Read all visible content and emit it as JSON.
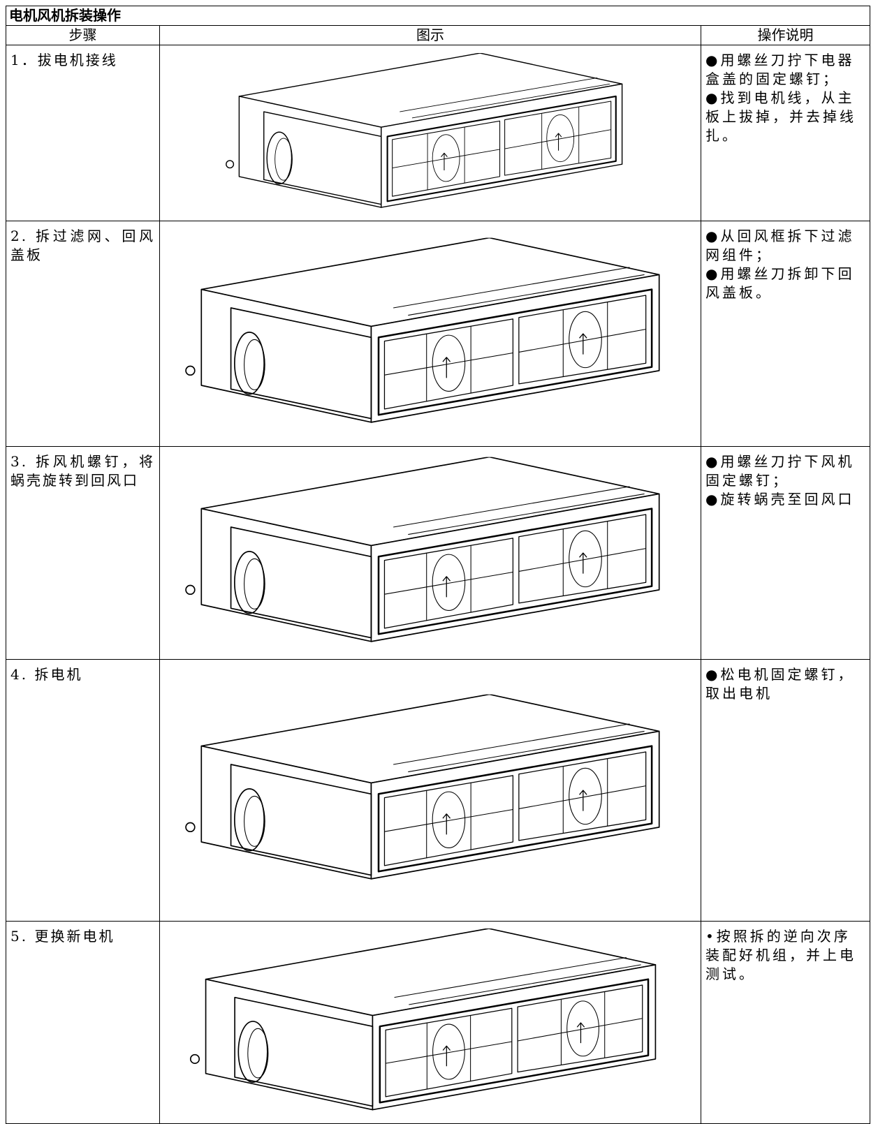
{
  "table": {
    "title": "电机风机拆装操作",
    "headers": [
      "步骤",
      "图示",
      "操作说明"
    ],
    "rows": [
      {
        "step": "1．拔电机接线",
        "description": [
          "●用螺丝刀拧下电器盒盖的固定螺钉；",
          "●找到电机线，从主板上拔掉，并去掉线扎。"
        ]
      },
      {
        "step": "2. 拆过滤网、回风盖板",
        "description": [
          "●从回风框拆下过滤网组件；",
          "●用螺丝刀拆卸下回风盖板。"
        ]
      },
      {
        "step": "3. 拆风机螺钉，将蜗壳旋转到回风口",
        "description": [
          "●用螺丝刀拧下风机固定螺钉；",
          "●旋转蜗壳至回风口"
        ]
      },
      {
        "step": "4. 拆电机",
        "description": [
          "●松电机固定螺钉，取出电机"
        ]
      },
      {
        "step": "5. 更换新电机",
        "description": [
          "•按照拆的逆向次序装配好机组，并上电测试。"
        ]
      }
    ]
  }
}
